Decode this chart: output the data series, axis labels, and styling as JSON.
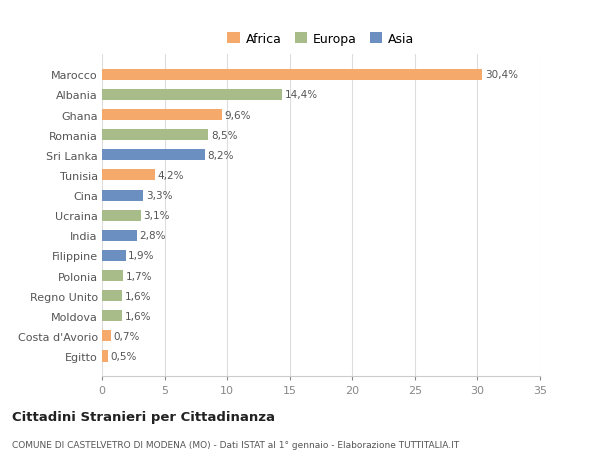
{
  "countries": [
    "Marocco",
    "Albania",
    "Ghana",
    "Romania",
    "Sri Lanka",
    "Tunisia",
    "Cina",
    "Ucraina",
    "India",
    "Filippine",
    "Polonia",
    "Regno Unito",
    "Moldova",
    "Costa d'Avorio",
    "Egitto"
  ],
  "values": [
    30.4,
    14.4,
    9.6,
    8.5,
    8.2,
    4.2,
    3.3,
    3.1,
    2.8,
    1.9,
    1.7,
    1.6,
    1.6,
    0.7,
    0.5
  ],
  "labels": [
    "30,4%",
    "14,4%",
    "9,6%",
    "8,5%",
    "8,2%",
    "4,2%",
    "3,3%",
    "3,1%",
    "2,8%",
    "1,9%",
    "1,7%",
    "1,6%",
    "1,6%",
    "0,7%",
    "0,5%"
  ],
  "continents": [
    "Africa",
    "Europa",
    "Africa",
    "Europa",
    "Asia",
    "Africa",
    "Asia",
    "Europa",
    "Asia",
    "Asia",
    "Europa",
    "Europa",
    "Europa",
    "Africa",
    "Africa"
  ],
  "colors": {
    "Africa": "#F5A96B",
    "Europa": "#A8BC8A",
    "Asia": "#6B8FC0"
  },
  "legend_labels": [
    "Africa",
    "Europa",
    "Asia"
  ],
  "legend_colors": [
    "#F5A96B",
    "#A8BC8A",
    "#6B8FC0"
  ],
  "title": "Cittadini Stranieri per Cittadinanza",
  "subtitle": "COMUNE DI CASTELVETRO DI MODENA (MO) - Dati ISTAT al 1° gennaio - Elaborazione TUTTITALIA.IT",
  "xlim": [
    0,
    35
  ],
  "xticks": [
    0,
    5,
    10,
    15,
    20,
    25,
    30,
    35
  ],
  "background_color": "#ffffff",
  "plot_bg_color": "#ffffff",
  "grid_color": "#dddddd",
  "bar_height": 0.55
}
